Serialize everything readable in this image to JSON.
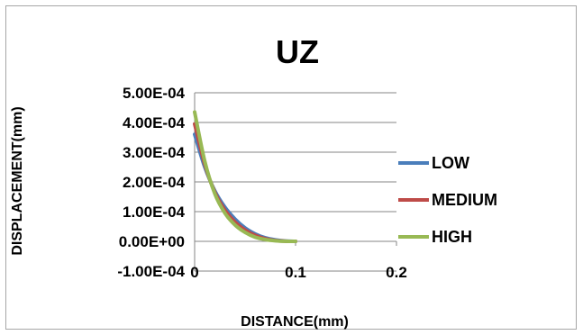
{
  "chart_data": {
    "type": "line",
    "title": "UZ",
    "xlabel": "DISTANCE(mm)",
    "ylabel": "DISPLACEMENT(mm)",
    "xlim": [
      0,
      0.2
    ],
    "ylim": [
      -0.0001,
      0.0005
    ],
    "x_ticks": [
      "0",
      "0.1",
      "0.2"
    ],
    "x_tick_values": [
      0,
      0.1,
      0.2
    ],
    "y_ticks": [
      "5.00E-04",
      "4.00E-04",
      "3.00E-04",
      "2.00E-04",
      "1.00E-04",
      "0.00E+00",
      "-1.00E-04"
    ],
    "y_tick_values": [
      0.0005,
      0.0004,
      0.0003,
      0.0002,
      0.0001,
      0,
      -0.0001
    ],
    "grid": true,
    "legend_position": "right",
    "series": [
      {
        "name": "LOW",
        "color": "#4a7ebb",
        "x": [
          0,
          0.01,
          0.02,
          0.03,
          0.04,
          0.05,
          0.06,
          0.07,
          0.08,
          0.09,
          0.1
        ],
        "y": [
          0.00036,
          0.00025,
          0.00017,
          0.000115,
          7.5e-05,
          4.5e-05,
          2.5e-05,
          1.2e-05,
          5e-06,
          1e-06,
          0
        ]
      },
      {
        "name": "MEDIUM",
        "color": "#be4b48",
        "x": [
          0,
          0.01,
          0.02,
          0.03,
          0.04,
          0.05,
          0.06,
          0.07,
          0.08,
          0.09,
          0.1
        ],
        "y": [
          0.000395,
          0.00026,
          0.000165,
          0.000105,
          6.5e-05,
          3.8e-05,
          2e-05,
          9e-06,
          3e-06,
          5e-07,
          0
        ]
      },
      {
        "name": "HIGH",
        "color": "#98b954",
        "x": [
          0,
          0.01,
          0.02,
          0.03,
          0.04,
          0.05,
          0.06,
          0.07,
          0.08,
          0.09,
          0.1
        ],
        "y": [
          0.000435,
          0.00027,
          0.00016,
          9.5e-05,
          5.5e-05,
          3e-05,
          1.4e-05,
          6e-06,
          2e-06,
          3e-07,
          0
        ]
      }
    ]
  }
}
